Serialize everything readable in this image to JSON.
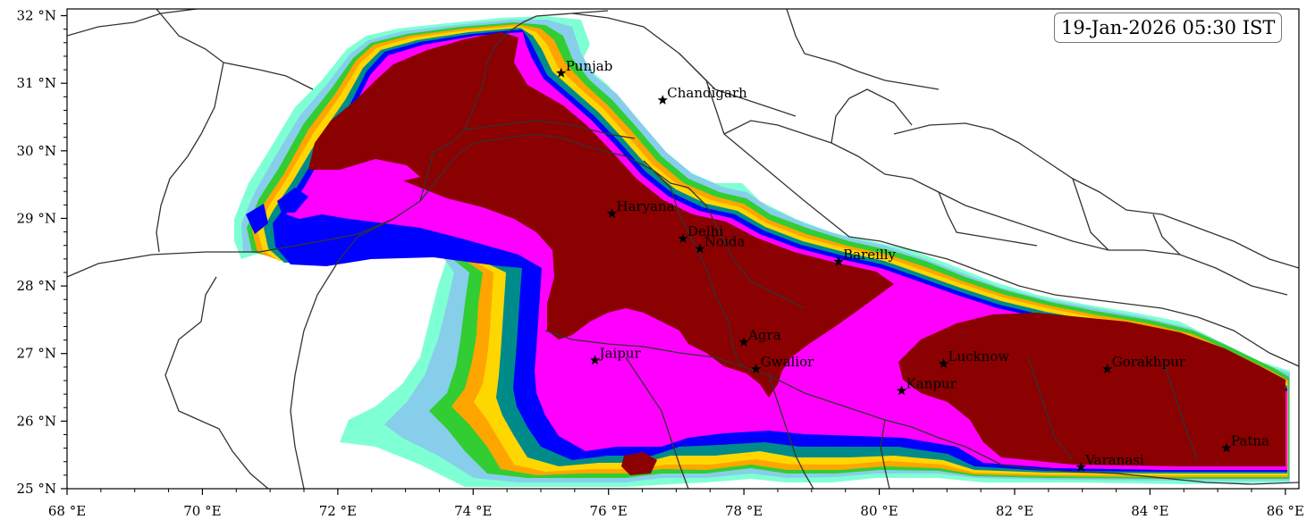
{
  "timestamp": "19-Jan-2026 05:30 IST",
  "axes": {
    "x_ticks": [
      "68 °E",
      "70 °E",
      "72 °E",
      "74 °E",
      "76 °E",
      "78 °E",
      "80 °E",
      "82 °E",
      "84 °E",
      "86 °E"
    ],
    "y_ticks": [
      "32 °N",
      "31 °N",
      "30 °N",
      "29 °N",
      "28 °N",
      "27 °N",
      "26 °N",
      "25 °N"
    ],
    "lon_range": [
      68,
      86.2
    ],
    "lat_range": [
      25,
      32.1
    ]
  },
  "cities": [
    {
      "name": "Punjab",
      "lon": 75.3,
      "lat": 31.15
    },
    {
      "name": "Chandigarh",
      "lon": 76.8,
      "lat": 30.75
    },
    {
      "name": "Haryana",
      "lon": 76.05,
      "lat": 29.07
    },
    {
      "name": "Delhi",
      "lon": 77.1,
      "lat": 28.7
    },
    {
      "name": "Noida",
      "lon": 77.35,
      "lat": 28.55
    },
    {
      "name": "Bareilly",
      "lon": 79.4,
      "lat": 28.36
    },
    {
      "name": "Agra",
      "lon": 78.0,
      "lat": 27.17
    },
    {
      "name": "Jaipur",
      "lon": 75.8,
      "lat": 26.9
    },
    {
      "name": "Gwalior",
      "lon": 78.18,
      "lat": 26.77
    },
    {
      "name": "Lucknow",
      "lon": 80.95,
      "lat": 26.85
    },
    {
      "name": "Kanpur",
      "lon": 80.33,
      "lat": 26.45
    },
    {
      "name": "Gorakhpur",
      "lon": 83.37,
      "lat": 26.77
    },
    {
      "name": "Varanasi",
      "lon": 82.98,
      "lat": 25.32
    },
    {
      "name": "Patna",
      "lon": 85.13,
      "lat": 25.6
    }
  ],
  "colors": {
    "level_1": "#7fffd4",
    "level_2": "#87ceeb",
    "level_3": "#32cd32",
    "level_4": "#ffa500",
    "level_5": "#ffd700",
    "level_6": "#008b8b",
    "level_7": "#0000ff",
    "level_8": "#ff00ff",
    "level_9": "#8b0000",
    "border": "#333333"
  }
}
